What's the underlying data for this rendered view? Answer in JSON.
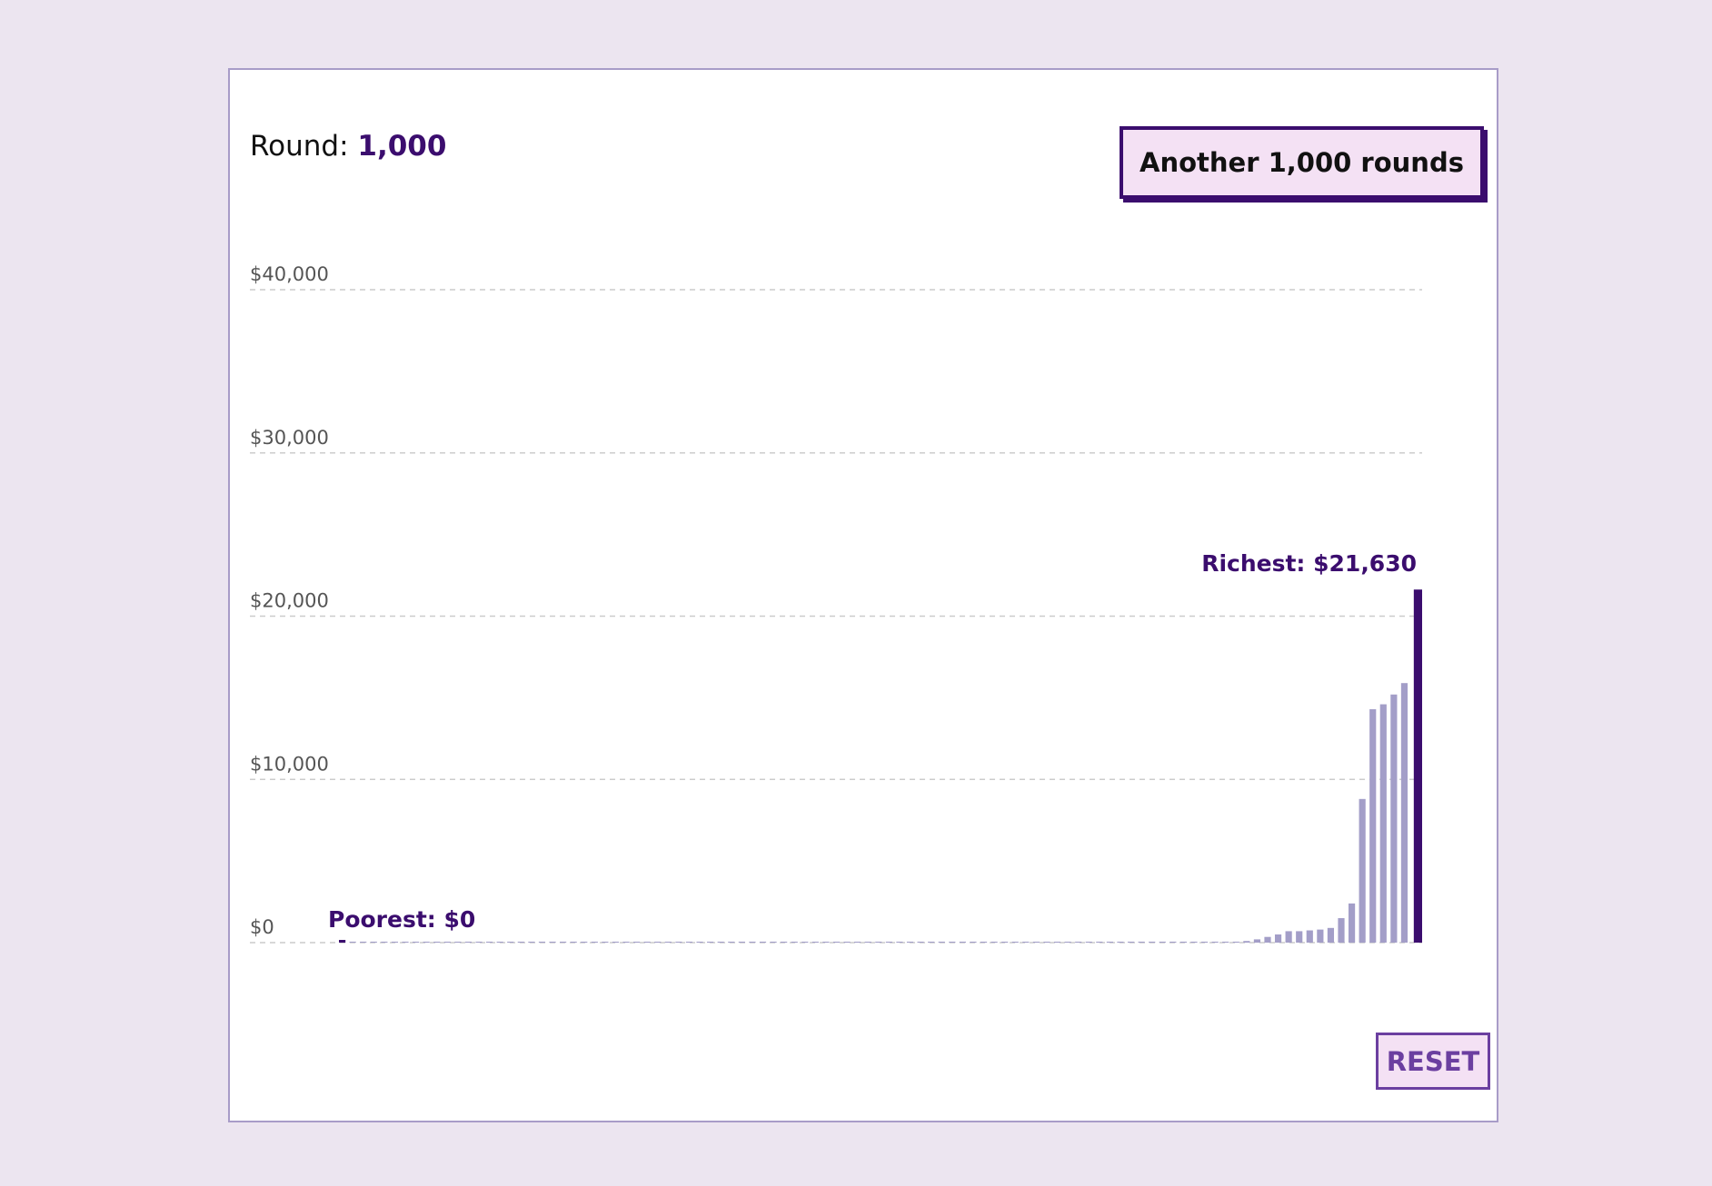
{
  "header": {
    "round_label": "Round:",
    "round_value": "1,000"
  },
  "controls": {
    "another_label": "Another 1,000 rounds",
    "reset_label": "RESET"
  },
  "colors": {
    "background": "#ece5f0",
    "panel": "#ffffff",
    "accent": "#3b0d6e",
    "bar": "#a39ec8",
    "highlight_bar": "#3b0d6e",
    "button_fill": "#f4e1f4",
    "grid": "#cccccc",
    "tick_text": "#555555"
  },
  "chart_data": {
    "type": "bar",
    "title": "",
    "xlabel": "",
    "ylabel": "",
    "ylim": [
      0,
      40000
    ],
    "yticks": [
      {
        "value": 0,
        "label": "$0"
      },
      {
        "value": 10000,
        "label": "$10,000"
      },
      {
        "value": 20000,
        "label": "$20,000"
      },
      {
        "value": 30000,
        "label": "$30,000"
      },
      {
        "value": 40000,
        "label": "$40,000"
      }
    ],
    "grid": true,
    "annotations": {
      "poorest": "Poorest: $0",
      "richest": "Richest: $21,630"
    },
    "values": [
      0,
      60,
      60,
      60,
      60,
      60,
      60,
      60,
      60,
      60,
      60,
      60,
      60,
      60,
      60,
      60,
      60,
      60,
      60,
      60,
      60,
      60,
      60,
      60,
      60,
      60,
      60,
      60,
      60,
      60,
      60,
      60,
      60,
      60,
      60,
      60,
      60,
      60,
      60,
      60,
      60,
      60,
      60,
      60,
      60,
      60,
      60,
      60,
      60,
      60,
      60,
      60,
      60,
      60,
      60,
      60,
      60,
      60,
      60,
      60,
      60,
      60,
      60,
      60,
      60,
      60,
      60,
      60,
      60,
      60,
      60,
      60,
      60,
      60,
      60,
      60,
      60,
      60,
      60,
      60,
      60,
      60,
      60,
      60,
      60,
      60,
      100,
      200,
      350,
      500,
      700,
      700,
      750,
      800,
      900,
      1500,
      2400,
      8800,
      14300,
      14600,
      15200,
      15900,
      21630
    ]
  }
}
